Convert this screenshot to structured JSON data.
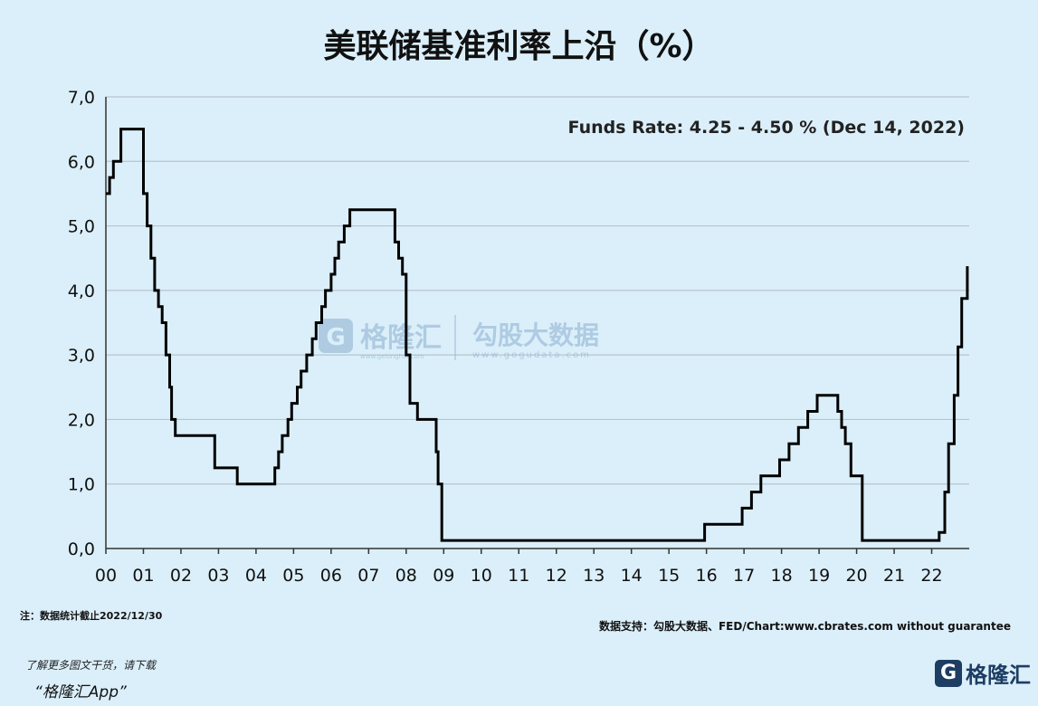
{
  "title": "美联储基准利率上沿（%）",
  "annotation": "Funds Rate: 4.25 - 4.50 % (Dec 14, 2022)",
  "watermark": {
    "brand_cn": "格隆汇",
    "brand_url": "www.gelonghui.com",
    "data_cn": "勾股大数据",
    "data_url": "www.gogudata.com"
  },
  "note": "注：数据统计截止2022/12/30",
  "source": "数据支持：勾股大数据、FED/Chart:www.cbrates.com without guarantee",
  "promo_line1": "了解更多图文干货，请下载",
  "promo_line2": "“格隆汇App”",
  "brand_logo_text": "格隆汇",
  "chart_data": {
    "type": "line",
    "step": true,
    "title": "美联储基准利率上沿（%）",
    "xlabel": "",
    "ylabel": "",
    "x_ticks": [
      "00",
      "01",
      "02",
      "03",
      "04",
      "05",
      "06",
      "07",
      "08",
      "09",
      "10",
      "11",
      "12",
      "13",
      "14",
      "15",
      "16",
      "17",
      "18",
      "19",
      "20",
      "21",
      "22"
    ],
    "y_ticks": [
      "0,0",
      "1,0",
      "2,0",
      "3,0",
      "4,0",
      "5,0",
      "6,0",
      "7,0"
    ],
    "xlim": [
      2000,
      2023
    ],
    "ylim": [
      0,
      7
    ],
    "grid": "horizontal",
    "color": "#000000",
    "series": [
      {
        "x": [
          2000.0,
          2000.1,
          2000.2,
          2000.4,
          2001.0,
          2001.1,
          2001.2,
          2001.3,
          2001.4,
          2001.5,
          2001.6,
          2001.7,
          2001.75,
          2001.85,
          2001.95,
          2002.9,
          2003.5,
          2004.5,
          2004.6,
          2004.7,
          2004.85,
          2004.95,
          2005.1,
          2005.2,
          2005.35,
          2005.5,
          2005.6,
          2005.75,
          2005.85,
          2006.0,
          2006.1,
          2006.2,
          2006.35,
          2006.5,
          2007.7,
          2007.8,
          2007.9,
          2008.0,
          2008.1,
          2008.3,
          2008.8,
          2008.85,
          2008.95,
          2015.95,
          2016.95,
          2017.2,
          2017.45,
          2017.95,
          2018.2,
          2018.45,
          2018.7,
          2018.95,
          2019.5,
          2019.6,
          2019.7,
          2019.85,
          2020.15,
          2020.2,
          2022.2,
          2022.35,
          2022.45,
          2022.6,
          2022.7,
          2022.8,
          2022.95
        ],
        "y": [
          5.5,
          5.75,
          6.0,
          6.5,
          5.5,
          5.0,
          4.5,
          4.0,
          3.75,
          3.5,
          3.0,
          2.5,
          2.0,
          1.75,
          1.75,
          1.25,
          1.0,
          1.25,
          1.5,
          1.75,
          2.0,
          2.25,
          2.5,
          2.75,
          3.0,
          3.25,
          3.5,
          3.75,
          4.0,
          4.25,
          4.5,
          4.75,
          5.0,
          5.25,
          4.75,
          4.5,
          4.25,
          3.0,
          2.25,
          2.0,
          1.5,
          1.0,
          0.125,
          0.375,
          0.625,
          0.875,
          1.125,
          1.375,
          1.625,
          1.875,
          2.125,
          2.375,
          2.125,
          1.875,
          1.625,
          1.125,
          0.125,
          0.125,
          0.25,
          0.875,
          1.625,
          2.375,
          3.125,
          3.875,
          4.375
        ]
      }
    ]
  }
}
